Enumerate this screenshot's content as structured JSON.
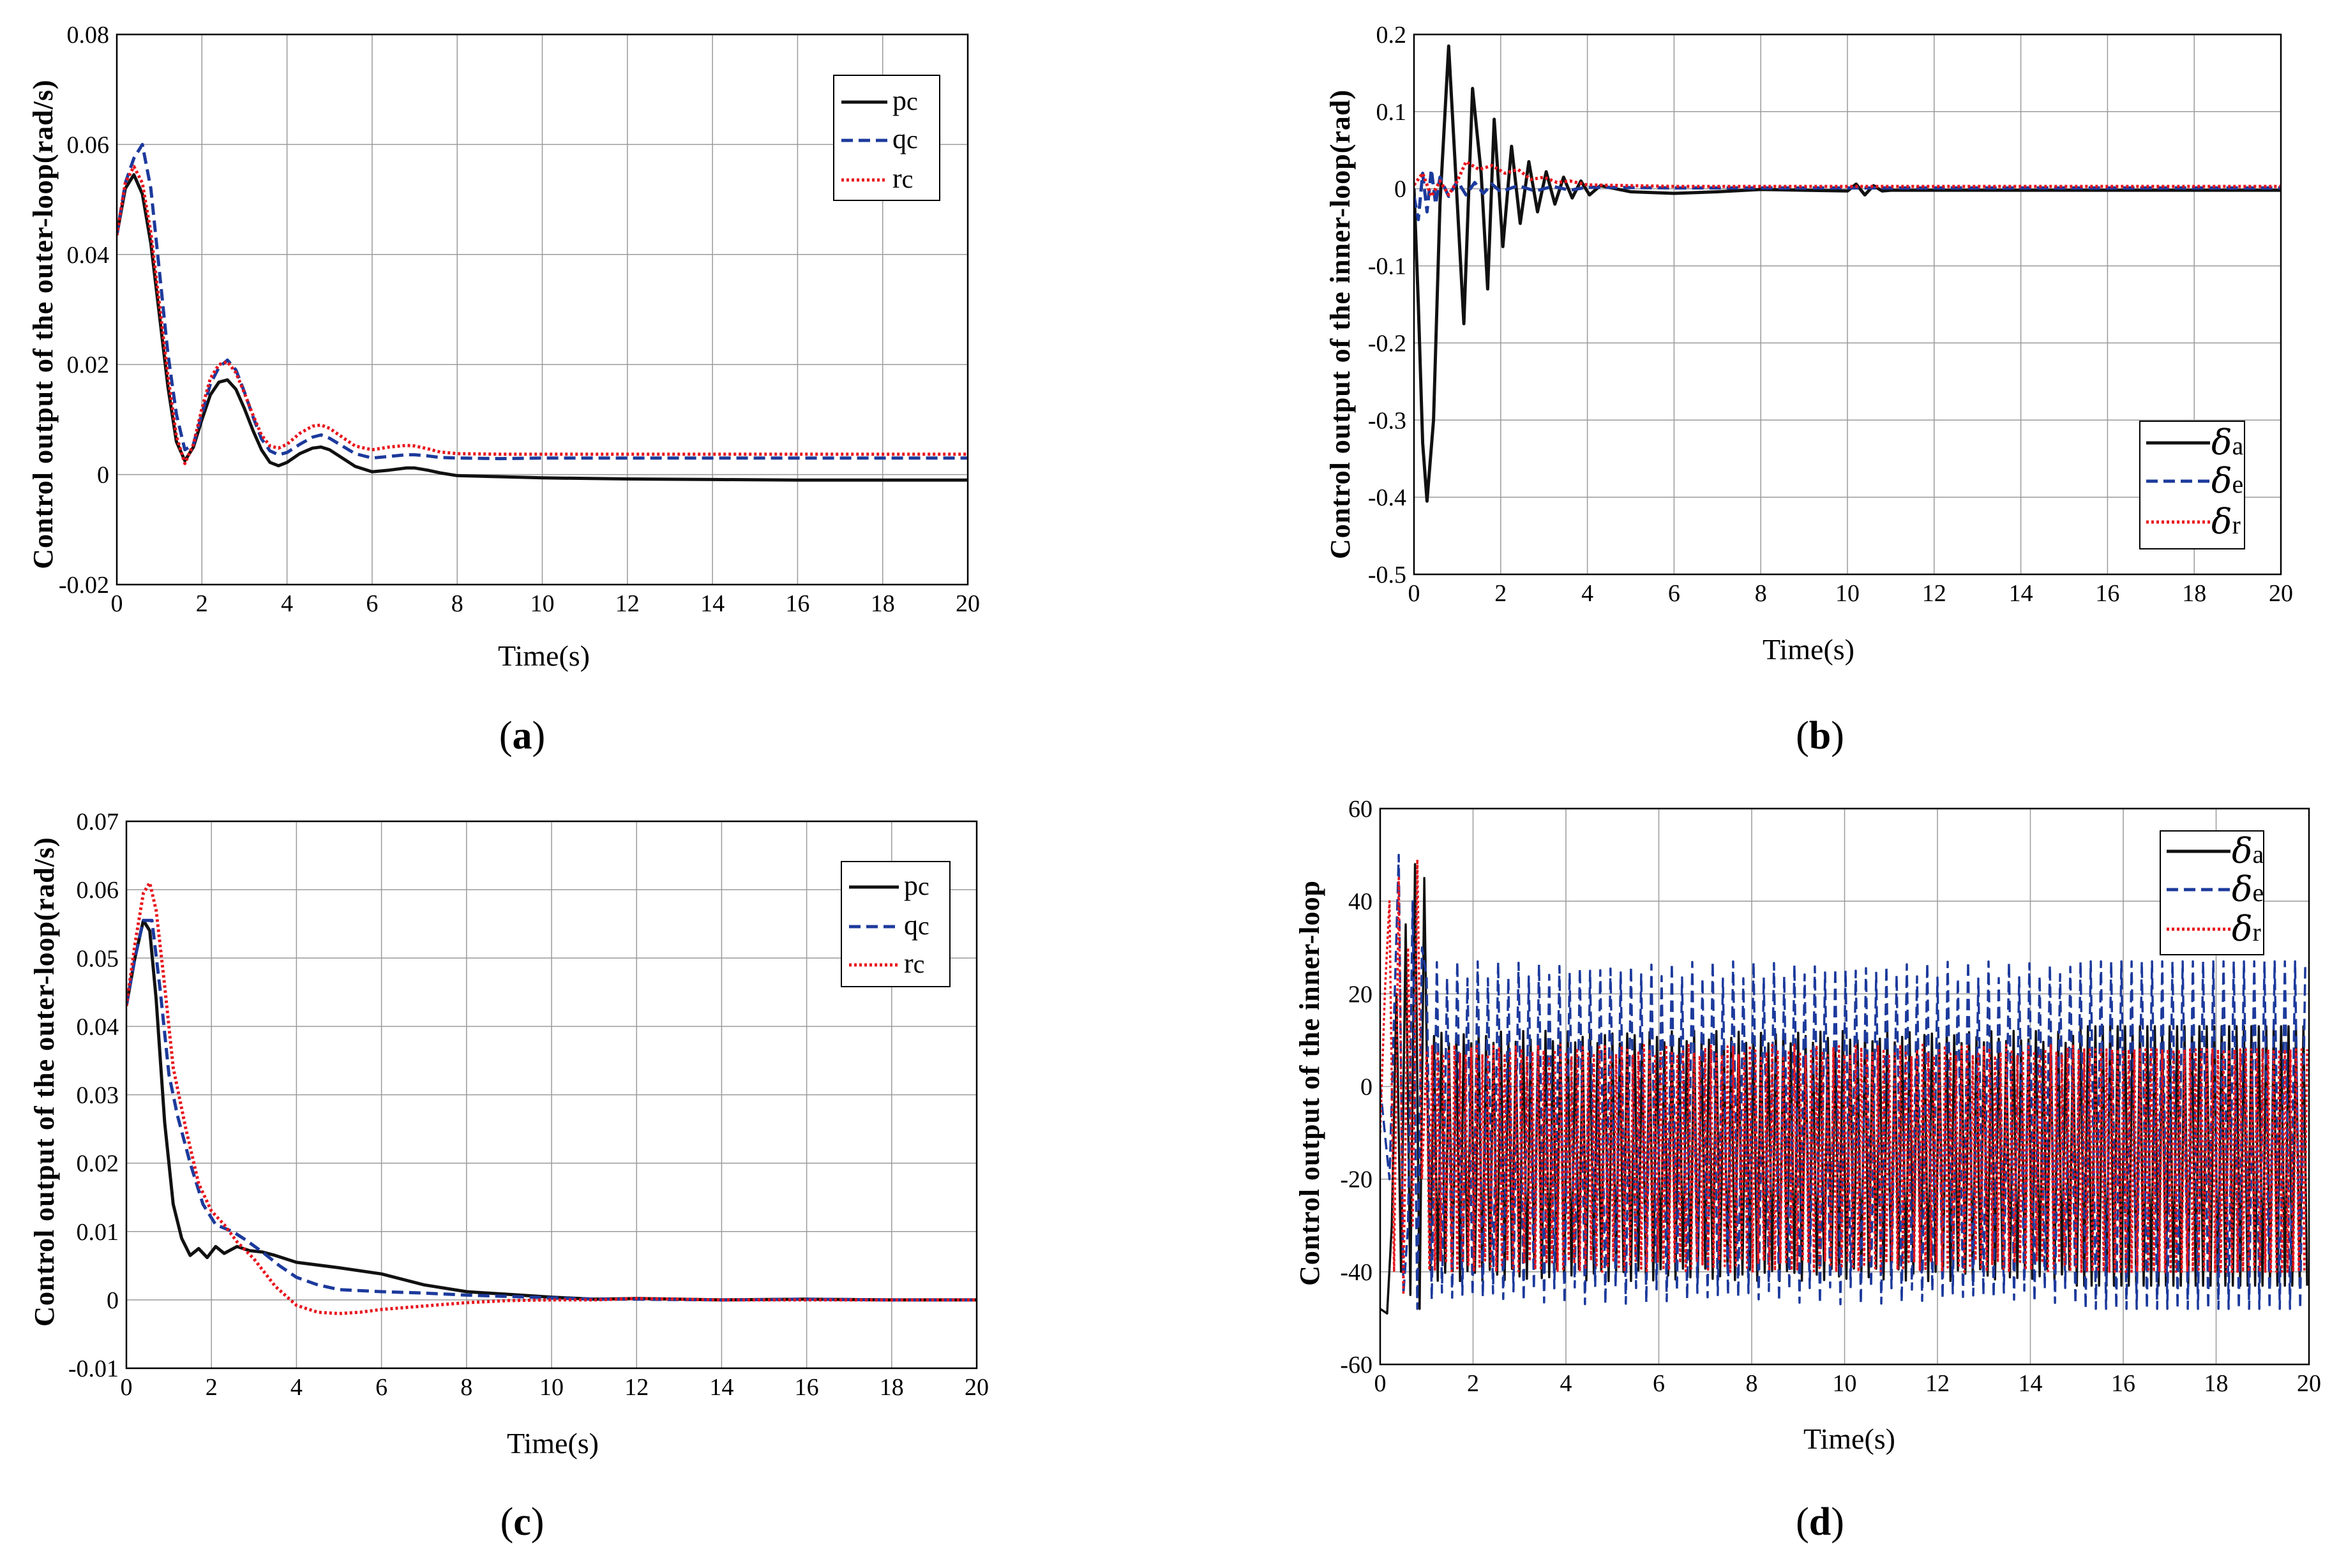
{
  "colors": {
    "black": "#111111",
    "blue": "#1c3a9c",
    "red": "#e8141c",
    "grid": "#9a9a9a"
  },
  "chart_data": [
    {
      "id": "a",
      "panel_label": {
        "open": "(",
        "letter": "a",
        "close": ")"
      },
      "type": "line",
      "xlabel": "Time(s)",
      "ylabel": "Control output of the outer-loop(rad/s)",
      "xlim": [
        0,
        20
      ],
      "ylim": [
        -0.02,
        0.08
      ],
      "xticks": [
        "0",
        "2",
        "4",
        "6",
        "8",
        "10",
        "12",
        "14",
        "16",
        "18",
        "20"
      ],
      "yticks": [
        "-0.02",
        "0",
        "0.02",
        "0.04",
        "0.06",
        "0.08"
      ],
      "legend_position": "top-right",
      "series": [
        {
          "name": "p",
          "sub": "c",
          "style": "solid",
          "x": [
            0,
            0.2,
            0.4,
            0.6,
            0.8,
            1.0,
            1.2,
            1.4,
            1.6,
            1.8,
            2.0,
            2.2,
            2.4,
            2.6,
            2.8,
            3.0,
            3.2,
            3.4,
            3.6,
            3.8,
            4.0,
            4.3,
            4.6,
            4.8,
            5.0,
            5.3,
            5.6,
            6.0,
            6.4,
            6.8,
            7.0,
            7.3,
            7.6,
            8.0,
            9,
            10,
            12,
            14,
            16,
            18,
            20
          ],
          "y": [
            0.0435,
            0.052,
            0.0545,
            0.051,
            0.042,
            0.029,
            0.016,
            0.006,
            0.0025,
            0.005,
            0.01,
            0.0145,
            0.0168,
            0.0172,
            0.0155,
            0.012,
            0.008,
            0.0045,
            0.0022,
            0.0016,
            0.0022,
            0.0038,
            0.0048,
            0.005,
            0.0045,
            0.003,
            0.0015,
            0.0005,
            0.0008,
            0.0012,
            0.0012,
            0.0008,
            0.0003,
            -0.0002,
            -0.0004,
            -0.0006,
            -0.0008,
            -0.0009,
            -0.001,
            -0.001,
            -0.001
          ]
        },
        {
          "name": "q",
          "sub": "c",
          "style": "dashed",
          "x": [
            0,
            0.2,
            0.4,
            0.6,
            0.8,
            1.0,
            1.2,
            1.4,
            1.6,
            1.8,
            2.0,
            2.2,
            2.4,
            2.6,
            2.8,
            3.0,
            3.2,
            3.4,
            3.6,
            3.8,
            4.0,
            4.3,
            4.6,
            4.8,
            5.0,
            5.3,
            5.6,
            6.0,
            6.4,
            6.8,
            7.0,
            7.3,
            7.6,
            8.0,
            9,
            10,
            12,
            14,
            16,
            18,
            20
          ],
          "y": [
            0.0435,
            0.053,
            0.0575,
            0.06,
            0.052,
            0.037,
            0.022,
            0.011,
            0.0045,
            0.0055,
            0.011,
            0.0165,
            0.0195,
            0.0208,
            0.019,
            0.015,
            0.0105,
            0.0065,
            0.0043,
            0.0036,
            0.004,
            0.0055,
            0.0068,
            0.0072,
            0.0066,
            0.0052,
            0.0038,
            0.003,
            0.0033,
            0.0036,
            0.0036,
            0.0034,
            0.0031,
            0.003,
            0.0029,
            0.003,
            0.003,
            0.003,
            0.003,
            0.003,
            0.003
          ]
        },
        {
          "name": "r",
          "sub": "c",
          "style": "dotted",
          "x": [
            0,
            0.2,
            0.4,
            0.6,
            0.8,
            1.0,
            1.2,
            1.4,
            1.6,
            1.8,
            2.0,
            2.2,
            2.4,
            2.6,
            2.8,
            3.0,
            3.2,
            3.4,
            3.6,
            3.8,
            4.0,
            4.3,
            4.6,
            4.8,
            5.0,
            5.3,
            5.6,
            6.0,
            6.4,
            6.8,
            7.0,
            7.3,
            7.6,
            8.0,
            9,
            10,
            12,
            14,
            16,
            18,
            20
          ],
          "y": [
            0.0435,
            0.053,
            0.056,
            0.053,
            0.044,
            0.031,
            0.018,
            0.007,
            0.002,
            0.0055,
            0.012,
            0.0175,
            0.02,
            0.0205,
            0.0185,
            0.0148,
            0.0108,
            0.0072,
            0.0052,
            0.0048,
            0.0055,
            0.0075,
            0.0088,
            0.009,
            0.0084,
            0.0068,
            0.0052,
            0.0045,
            0.005,
            0.0053,
            0.0052,
            0.0047,
            0.0041,
            0.0038,
            0.0037,
            0.0037,
            0.0037,
            0.0037,
            0.0037,
            0.0037,
            0.0037
          ]
        }
      ]
    },
    {
      "id": "b",
      "panel_label": {
        "open": "(",
        "letter": "b",
        "close": ")"
      },
      "type": "line",
      "xlabel": "Time(s)",
      "ylabel": "Control output of the inner-loop(rad)",
      "xlim": [
        0,
        20
      ],
      "ylim": [
        -0.5,
        0.2
      ],
      "xticks": [
        "0",
        "2",
        "4",
        "6",
        "8",
        "10",
        "12",
        "14",
        "16",
        "18",
        "20"
      ],
      "yticks": [
        "-0.5",
        "-0.4",
        "-0.3",
        "-0.2",
        "-0.1",
        "0",
        "0.1",
        "0.2"
      ],
      "legend_position": "bottom-right",
      "series": [
        {
          "name": "δ",
          "sub": "a",
          "style": "solid",
          "x": [
            0,
            0.1,
            0.2,
            0.3,
            0.45,
            0.6,
            0.8,
            1.0,
            1.15,
            1.35,
            1.55,
            1.7,
            1.85,
            2.05,
            2.25,
            2.45,
            2.65,
            2.85,
            3.05,
            3.25,
            3.45,
            3.65,
            3.85,
            4.05,
            4.3,
            5,
            6,
            7,
            8,
            9,
            10,
            10.2,
            10.4,
            10.6,
            10.8,
            11,
            12,
            14,
            16,
            18,
            20
          ],
          "y": [
            0,
            -0.15,
            -0.33,
            -0.405,
            -0.3,
            -0.02,
            0.185,
            -0.02,
            -0.175,
            0.13,
            0.02,
            -0.13,
            0.09,
            -0.075,
            0.055,
            -0.045,
            0.035,
            -0.03,
            0.022,
            -0.02,
            0.015,
            -0.012,
            0.01,
            -0.008,
            0.004,
            -0.004,
            -0.006,
            -0.004,
            -0.001,
            -0.002,
            -0.003,
            0.006,
            -0.008,
            0.004,
            -0.003,
            -0.002,
            -0.002,
            -0.002,
            -0.002,
            -0.002,
            -0.002
          ]
        },
        {
          "name": "δ",
          "sub": "e",
          "style": "dashed",
          "x": [
            0,
            0.1,
            0.2,
            0.3,
            0.4,
            0.5,
            0.6,
            0.8,
            1.0,
            1.2,
            1.4,
            1.6,
            1.8,
            2.0,
            2.4,
            2.8,
            3.2,
            3.6,
            4,
            6,
            8,
            10,
            12,
            14,
            16,
            18,
            20
          ],
          "y": [
            -0.01,
            -0.04,
            0.02,
            -0.03,
            0.025,
            -0.02,
            0.015,
            -0.01,
            0.01,
            -0.008,
            0.008,
            -0.006,
            0.006,
            -0.004,
            0.004,
            -0.003,
            0.003,
            -0.002,
            0.002,
            0.001,
            0.001,
            0.001,
            0.001,
            0.001,
            0.001,
            0.001,
            0.001
          ]
        },
        {
          "name": "δ",
          "sub": "r",
          "style": "dotted",
          "x": [
            0,
            0.2,
            0.4,
            0.6,
            0.8,
            1.0,
            1.2,
            1.5,
            1.8,
            2.1,
            2.4,
            2.7,
            3.0,
            3.3,
            3.6,
            4,
            5,
            6,
            8,
            10,
            12,
            14,
            16,
            18,
            20
          ],
          "y": [
            0.005,
            0.02,
            -0.01,
            0.01,
            -0.008,
            0.01,
            0.035,
            0.025,
            0.03,
            0.02,
            0.025,
            0.012,
            0.015,
            0.008,
            0.01,
            0.005,
            0.004,
            0.003,
            0.003,
            0.003,
            0.003,
            0.003,
            0.003,
            0.003,
            0.003
          ]
        }
      ]
    },
    {
      "id": "c",
      "panel_label": {
        "open": "(",
        "letter": "c",
        "close": ")"
      },
      "type": "line",
      "xlabel": "Time(s)",
      "ylabel": "Control output of the outer-loop(rad/s)",
      "xlim": [
        0,
        20
      ],
      "ylim": [
        -0.01,
        0.07
      ],
      "xticks": [
        "0",
        "2",
        "4",
        "6",
        "8",
        "10",
        "12",
        "14",
        "16",
        "18",
        "20"
      ],
      "yticks": [
        "-0.01",
        "0",
        "0.01",
        "0.02",
        "0.03",
        "0.04",
        "0.05",
        "0.06",
        "0.07"
      ],
      "legend_position": "top-right",
      "series": [
        {
          "name": "p",
          "sub": "c",
          "style": "solid",
          "x": [
            0,
            0.2,
            0.4,
            0.55,
            0.7,
            0.9,
            1.1,
            1.3,
            1.5,
            1.7,
            1.9,
            2.1,
            2.3,
            2.6,
            2.9,
            3.2,
            3.5,
            4.0,
            5.0,
            6.0,
            7.0,
            8.0,
            9.0,
            10,
            11,
            12,
            14,
            16,
            18,
            20
          ],
          "y": [
            0.043,
            0.05,
            0.0555,
            0.054,
            0.044,
            0.026,
            0.014,
            0.009,
            0.0065,
            0.0075,
            0.0062,
            0.0078,
            0.0068,
            0.0078,
            0.0072,
            0.007,
            0.0065,
            0.0055,
            0.0047,
            0.0038,
            0.0022,
            0.0012,
            0.0008,
            0.0004,
            0.0001,
            0.0002,
            0.0,
            0.0001,
            0.0,
            0.0
          ]
        },
        {
          "name": "q",
          "sub": "c",
          "style": "dashed",
          "x": [
            0,
            0.2,
            0.4,
            0.6,
            0.8,
            1.0,
            1.2,
            1.5,
            1.8,
            2.1,
            2.5,
            2.8,
            3.2,
            3.6,
            4.0,
            4.5,
            5,
            6,
            7,
            8,
            9,
            10,
            11,
            12,
            14,
            16,
            18,
            20
          ],
          "y": [
            0.043,
            0.05,
            0.0555,
            0.0555,
            0.045,
            0.033,
            0.027,
            0.02,
            0.014,
            0.011,
            0.01,
            0.0088,
            0.007,
            0.005,
            0.0033,
            0.0022,
            0.0015,
            0.0012,
            0.001,
            0.0007,
            0.0005,
            0.0003,
            0.0001,
            0.0001,
            0.0,
            0.0001,
            0.0,
            0.0
          ]
        },
        {
          "name": "r",
          "sub": "c",
          "style": "dotted",
          "x": [
            0,
            0.2,
            0.4,
            0.55,
            0.7,
            0.9,
            1.1,
            1.4,
            1.7,
            2.0,
            2.3,
            2.6,
            3.0,
            3.5,
            4.0,
            4.5,
            5.0,
            5.5,
            6,
            7,
            8,
            9,
            10,
            11,
            12,
            14,
            16,
            18,
            20
          ],
          "y": [
            0.043,
            0.052,
            0.0595,
            0.061,
            0.057,
            0.046,
            0.034,
            0.025,
            0.017,
            0.013,
            0.011,
            0.0085,
            0.006,
            0.002,
            -0.0008,
            -0.0018,
            -0.002,
            -0.0018,
            -0.0014,
            -0.0009,
            -0.0004,
            -0.0001,
            0.0,
            0.0,
            0.0002,
            0.0,
            0.0,
            0.0,
            0.0
          ]
        }
      ]
    },
    {
      "id": "d",
      "panel_label": {
        "open": "(",
        "letter": "d",
        "close": ")"
      },
      "type": "line",
      "xlabel": "Time(s)",
      "ylabel": "Control output of the inner-loop",
      "xlim": [
        0,
        20
      ],
      "ylim": [
        -60,
        60
      ],
      "xticks": [
        "0",
        "2",
        "4",
        "6",
        "8",
        "10",
        "12",
        "14",
        "16",
        "18",
        "20"
      ],
      "yticks": [
        "-60",
        "-40",
        "-20",
        "0",
        "20",
        "40",
        "60"
      ],
      "legend_position": "top-right",
      "series": [
        {
          "name": "δ",
          "sub": "a",
          "style": "solid",
          "oscillation": {
            "start": 1.0,
            "end": 20,
            "period": 0.16,
            "upper": 12,
            "lower": -42,
            "upper_late": 13,
            "lower_late": -43,
            "transition": 15
          },
          "x": [
            0,
            0.15,
            0.25,
            0.35,
            0.45,
            0.55,
            0.65,
            0.75,
            0.85,
            0.95
          ],
          "y": [
            -48,
            -49,
            -30,
            20,
            -40,
            35,
            -45,
            48,
            -48,
            45
          ]
        },
        {
          "name": "δ",
          "sub": "e",
          "style": "dashed",
          "oscillation": {
            "start": 1.0,
            "end": 20,
            "period": 0.22,
            "upper": 27,
            "lower": -47,
            "upper_late": 27,
            "lower_late": -48,
            "transition": 15
          },
          "x": [
            0,
            0.1,
            0.2,
            0.3,
            0.4,
            0.5,
            0.6,
            0.7,
            0.8,
            0.9
          ],
          "y": [
            0,
            -10,
            -20,
            15,
            50,
            -45,
            -30,
            40,
            -48,
            30
          ]
        },
        {
          "name": "δ",
          "sub": "r",
          "style": "dotted",
          "oscillation": {
            "start": 1.0,
            "end": 20,
            "period": 0.12,
            "upper": 9,
            "lower": -40,
            "upper_late": 8,
            "lower_late": -40,
            "transition": 15
          },
          "x": [
            0,
            0.1,
            0.2,
            0.3,
            0.4,
            0.5,
            0.6,
            0.7,
            0.8,
            0.9
          ],
          "y": [
            -10,
            20,
            40,
            -40,
            45,
            -45,
            30,
            -30,
            49,
            -20
          ]
        }
      ]
    }
  ]
}
